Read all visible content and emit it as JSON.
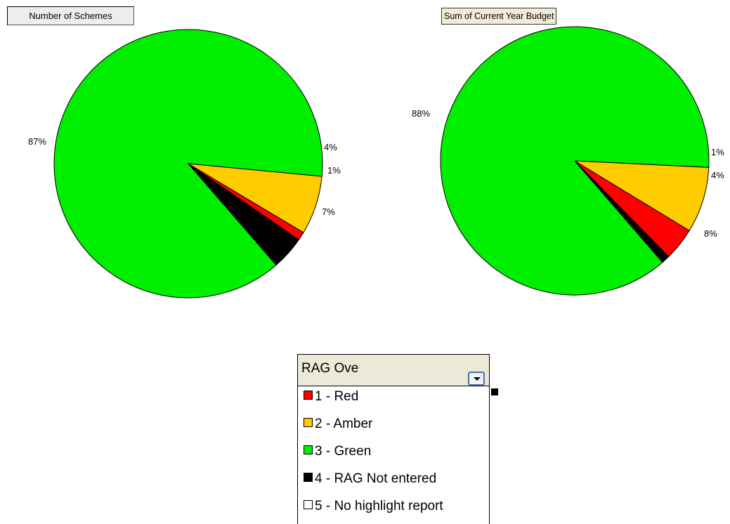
{
  "chart_data": [
    {
      "type": "pie",
      "title": "Number of Schemes",
      "slices": [
        {
          "label": "87%",
          "value": 87,
          "color": "#00ee00",
          "category": "3 - Green"
        },
        {
          "label": "4%",
          "value": 4,
          "color": "#000000",
          "category": "4 - RAG Not entered"
        },
        {
          "label": "1%",
          "value": 1,
          "color": "#ff0000",
          "category": "1 - Red"
        },
        {
          "label": "7%",
          "value": 7,
          "color": "#ffcc00",
          "category": "2 - Amber"
        }
      ]
    },
    {
      "type": "pie",
      "title": "Sum of Current Year Budget",
      "slices": [
        {
          "label": "88%",
          "value": 88,
          "color": "#00ee00",
          "category": "3 - Green"
        },
        {
          "label": "1%",
          "value": 1,
          "color": "#000000",
          "category": "4 - RAG Not entered"
        },
        {
          "label": "4%",
          "value": 4,
          "color": "#ff0000",
          "category": "1 - Red"
        },
        {
          "label": "8%",
          "value": 8,
          "color": "#ffcc00",
          "category": "2 - Amber"
        }
      ]
    }
  ],
  "rag_filter": {
    "label": "RAG Ove",
    "items": [
      {
        "label": "1 - Red",
        "color": "#ff0000"
      },
      {
        "label": "2 - Amber",
        "color": "#ffcc00"
      },
      {
        "label": "3 - Green",
        "color": "#00ee00"
      },
      {
        "label": "4 - RAG Not entered",
        "color": "#000000"
      },
      {
        "label": "5 - No highlight report",
        "color": "#ffffff"
      }
    ]
  }
}
